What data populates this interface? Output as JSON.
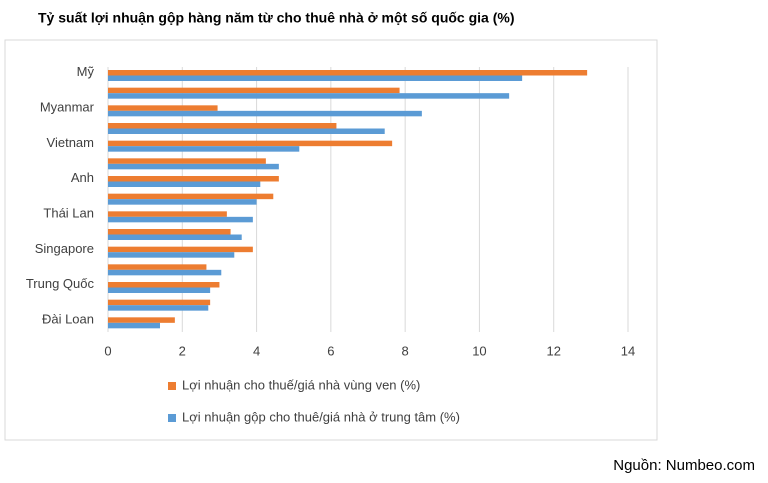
{
  "chart_data": {
    "type": "hbar",
    "title": "Tỷ suất lợi nhuận gộp hàng năm từ cho thuê nhà ở một số quốc gia (%)",
    "source": "Nguồn: Numbeo.com",
    "categories": [
      "Mỹ",
      null,
      "Myanmar",
      null,
      "Vietnam",
      null,
      "Anh",
      null,
      "Thái Lan",
      null,
      "Singapore",
      null,
      "Trung Quốc",
      null,
      "Đài Loan"
    ],
    "series": [
      {
        "name": "Lợi nhuận cho thuế/giá nhà vùng ven (%)",
        "color": "#ed7d31",
        "values": [
          12.9,
          7.85,
          2.95,
          6.15,
          7.65,
          4.25,
          4.6,
          4.45,
          3.2,
          3.3,
          3.9,
          2.65,
          3.0,
          2.75,
          1.8
        ]
      },
      {
        "name": "Lợi nhuận gộp cho thuê/giá nhà ở trung tâm (%)",
        "color": "#5b9bd5",
        "values": [
          11.15,
          10.8,
          8.45,
          7.45,
          5.15,
          4.6,
          4.1,
          4.0,
          3.9,
          3.6,
          3.4,
          3.05,
          2.75,
          2.7,
          1.4
        ]
      }
    ],
    "xlim": [
      0,
      14
    ],
    "xticks": [
      0,
      2,
      4,
      6,
      8,
      10,
      12,
      14
    ],
    "grid": true
  }
}
